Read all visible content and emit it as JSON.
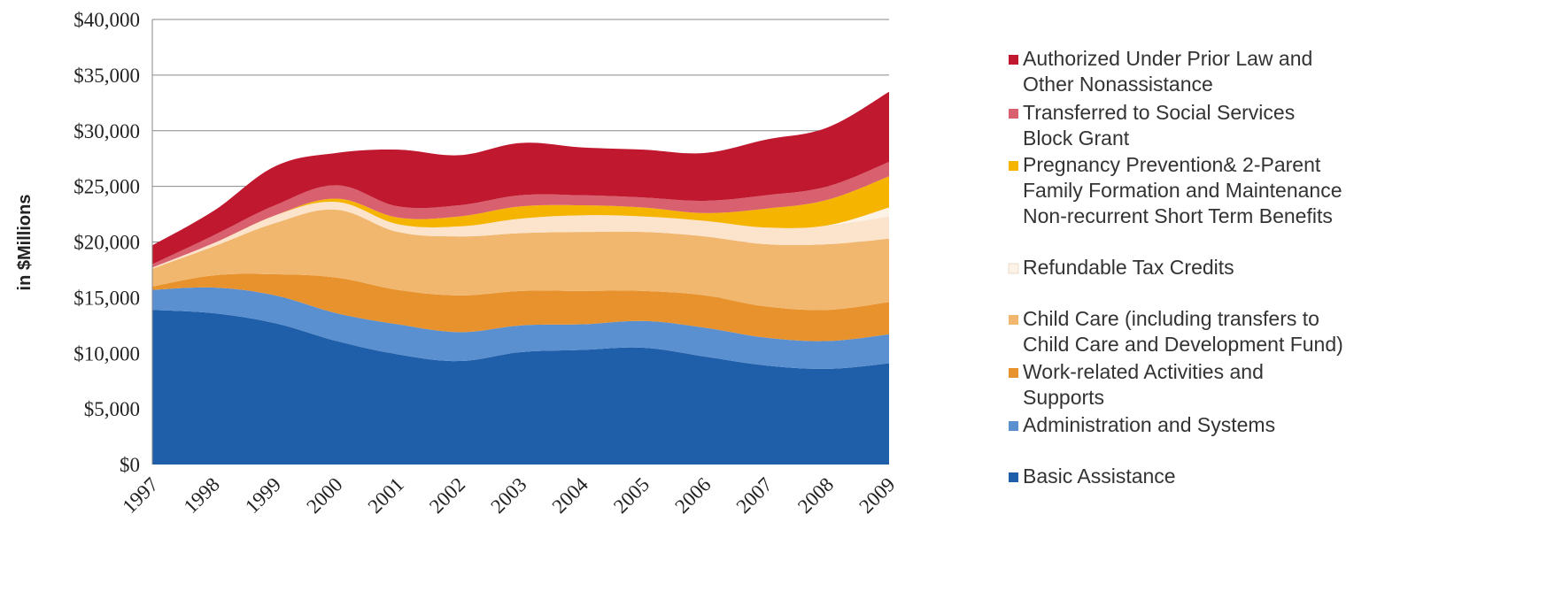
{
  "chart_data": {
    "type": "area",
    "stacked": true,
    "ylabel": "in $Millions",
    "ylim": [
      0,
      40000
    ],
    "yticks": [
      "$40,000",
      "$35,000",
      "$30,000",
      "$25,000",
      "$20,000",
      "$15,000",
      "$10,000",
      "$5,000",
      "$0"
    ],
    "ytick_values": [
      40000,
      35000,
      30000,
      25000,
      20000,
      15000,
      10000,
      5000,
      0
    ],
    "x": [
      "1997",
      "1998",
      "1999",
      "2000",
      "2001",
      "2002",
      "2003",
      "2004",
      "2005",
      "2006",
      "2007",
      "2008",
      "2009"
    ],
    "grid": "horizontal",
    "legend_position": "right",
    "series": [
      {
        "name": "Basic Assistance",
        "color": "#1f5faa",
        "values": [
          13900,
          13600,
          12700,
          11100,
          9900,
          9300,
          10100,
          10300,
          10500,
          9700,
          8900,
          8600,
          9100
        ]
      },
      {
        "name": "Administration and Systems",
        "color": "#5a8fd0",
        "values": [
          1800,
          2300,
          2500,
          2500,
          2700,
          2600,
          2400,
          2300,
          2400,
          2600,
          2500,
          2500,
          2600
        ]
      },
      {
        "name": "Work-related Activities and Supports",
        "color": "#e8922e",
        "values": [
          300,
          1100,
          1900,
          3200,
          3100,
          3300,
          3100,
          3000,
          2700,
          2900,
          2800,
          2800,
          2900
        ]
      },
      {
        "name": "Child Care (including transfers to Child Care and Development Fund)",
        "color": "#f2b76e",
        "values": [
          1600,
          2600,
          4600,
          6100,
          5200,
          5300,
          5200,
          5300,
          5300,
          5300,
          5600,
          5900,
          5700
        ]
      },
      {
        "name": "Refundable Tax Credits",
        "color": "#fbe3cc",
        "values": [
          100,
          300,
          700,
          700,
          700,
          900,
          1300,
          1500,
          1400,
          1400,
          1500,
          1700,
          2000
        ]
      },
      {
        "name": "Non-recurrent Short Term Benefits",
        "color": "#fdf2e6",
        "values": [
          0,
          0,
          0,
          0,
          0,
          0,
          0,
          0,
          0,
          0,
          0,
          0,
          800
        ]
      },
      {
        "name": "Pregnancy Prevention& 2-Parent Family Formation and Maintenance",
        "color": "#f5b400",
        "values": [
          0,
          0,
          0,
          300,
          600,
          900,
          1100,
          900,
          800,
          700,
          1700,
          2300,
          2800
        ]
      },
      {
        "name": "Transferred to Social Services Block Grant",
        "color": "#d9606e",
        "values": [
          300,
          700,
          900,
          1200,
          1000,
          1000,
          1000,
          900,
          900,
          1100,
          1200,
          1200,
          1300
        ]
      },
      {
        "name": "Authorized Under Prior Law and Other Nonassistance",
        "color": "#c0182e",
        "values": [
          1700,
          2200,
          3500,
          2900,
          5100,
          4500,
          4700,
          4300,
          4300,
          4300,
          5000,
          5300,
          6300
        ]
      }
    ],
    "legend": [
      {
        "text": [
          "Authorized Under Prior Law and",
          "Other Nonassistance"
        ],
        "color": "#c0182e"
      },
      {
        "text": [
          "Transferred to Social Services",
          "Block Grant"
        ],
        "color": "#d9606e"
      },
      {
        "text": [
          "Pregnancy Prevention& 2-Parent",
          "Family Formation and Maintenance",
          "Non-recurrent Short Term Benefits"
        ],
        "color": "#f5b400"
      },
      {
        "text": [
          "Refundable Tax Credits"
        ],
        "color": "#fdf2e6"
      },
      {
        "text": [
          "Child Care (including transfers to",
          "Child Care and Development Fund)"
        ],
        "color": "#f2b76e"
      },
      {
        "text": [
          "Work-related Activities and",
          "Supports"
        ],
        "color": "#e8922e"
      },
      {
        "text": [
          "Administration and Systems"
        ],
        "color": "#5a8fd0"
      },
      {
        "text": [
          "Basic Assistance"
        ],
        "color": "#1f5faa"
      }
    ]
  }
}
